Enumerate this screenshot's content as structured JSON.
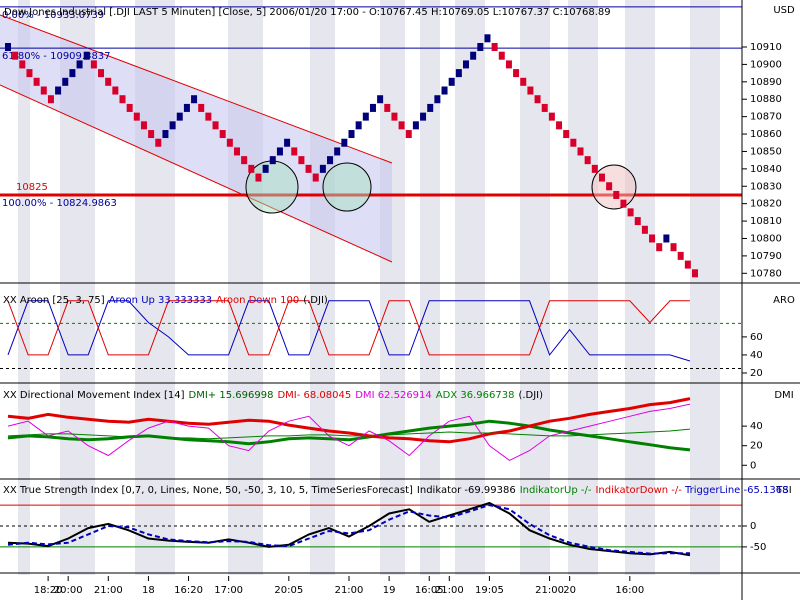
{
  "chart_data": [
    {
      "type": "renko",
      "axis_label": "USD",
      "title": "Dow Jones Industrial [.DJI LAST 5 Minuten] [Close, 5] 2006/01/20 17:00 - O:10767.45 H:10769.05 L:10767.37 C:10768.89",
      "values": [
        10910,
        10905,
        10900,
        10895,
        10890,
        10885,
        10880,
        10885,
        10890,
        10895,
        10900,
        10905,
        10900,
        10895,
        10890,
        10885,
        10880,
        10875,
        10870,
        10865,
        10860,
        10855,
        10860,
        10865,
        10870,
        10875,
        10880,
        10875,
        10870,
        10865,
        10860,
        10855,
        10850,
        10845,
        10840,
        10835,
        10840,
        10845,
        10850,
        10855,
        10850,
        10845,
        10840,
        10835,
        10840,
        10845,
        10850,
        10855,
        10860,
        10865,
        10870,
        10875,
        10880,
        10875,
        10870,
        10865,
        10860,
        10865,
        10870,
        10875,
        10880,
        10885,
        10890,
        10895,
        10900,
        10905,
        10910,
        10915,
        10910,
        10905,
        10900,
        10895,
        10890,
        10885,
        10880,
        10875,
        10870,
        10865,
        10860,
        10855,
        10850,
        10845,
        10840,
        10835,
        10830,
        10825,
        10820,
        10815,
        10810,
        10805,
        10800,
        10795,
        10800,
        10795,
        10790,
        10785,
        10780
      ],
      "up_color": "#00007a",
      "down_color": "#d8002a",
      "ylim": [
        10775,
        10937
      ],
      "yticks": [
        10780,
        10790,
        10800,
        10810,
        10820,
        10830,
        10840,
        10850,
        10860,
        10870,
        10880,
        10890,
        10900,
        10910
      ],
      "levels": [
        {
          "value": 10933.0739,
          "label": "0.00% - 10933.0739",
          "color": "#0000a0",
          "width": 1
        },
        {
          "value": 10909.3837,
          "label": "61.80% - 10909.3837",
          "color": "#0000a0",
          "width": 1
        },
        {
          "value": 10825,
          "label": "10825",
          "color": "#e00000",
          "width": 3
        },
        {
          "value": 10824.9863,
          "label": "100.00% - 10824.9863",
          "color": "#0000a0",
          "width": 0
        }
      ]
    },
    {
      "type": "line",
      "axis_label": "ARO",
      "title_parts": [
        {
          "text": "XX Aroon [25, 3, 75]",
          "color": "#000000"
        },
        {
          "text": "Aroon Up 33.333333",
          "color": "#0000c0"
        },
        {
          "text": "Aroon Down 100",
          "color": "#e00000"
        },
        {
          "text": "(.DJI)",
          "color": "#000000"
        }
      ],
      "series": [
        {
          "color": "#0000c0",
          "width": 1,
          "values": [
            40,
            100,
            100,
            40,
            40,
            100,
            100,
            76,
            60,
            40,
            40,
            40,
            100,
            100,
            40,
            40,
            100,
            100,
            100,
            40,
            40,
            100,
            100,
            100,
            100,
            100,
            100,
            40,
            68,
            40,
            40,
            40,
            40,
            40,
            33.333333
          ]
        },
        {
          "color": "#e00000",
          "width": 1,
          "values": [
            100,
            40,
            40,
            100,
            100,
            40,
            40,
            40,
            100,
            100,
            100,
            100,
            40,
            40,
            100,
            100,
            40,
            40,
            40,
            100,
            100,
            40,
            40,
            40,
            40,
            40,
            40,
            100,
            100,
            100,
            100,
            100,
            76,
            100,
            100
          ]
        }
      ],
      "levels": [
        {
          "value": 75,
          "color": "#008000",
          "dash": true
        },
        {
          "value": 25,
          "color": "#000000",
          "dash": true
        }
      ],
      "ylim": [
        10,
        112
      ],
      "yticks": [
        20,
        40,
        60
      ]
    },
    {
      "type": "line",
      "axis_label": "DMI",
      "title_parts": [
        {
          "text": "XX Directional Movement Index [14]",
          "color": "#000000"
        },
        {
          "text": "DMI+ 15.696998",
          "color": "#006000"
        },
        {
          "text": "DMI- 68.08045",
          "color": "#e00000"
        },
        {
          "text": "DMI 62.526914",
          "color": "#e000e0"
        },
        {
          "text": "ADX 36.966738",
          "color": "#008000"
        },
        {
          "text": "(.DJI)",
          "color": "#000000"
        }
      ],
      "series": [
        {
          "color": "#008000",
          "width": 3,
          "values": [
            28,
            30,
            29,
            27,
            26,
            27,
            29,
            30,
            28,
            26,
            25,
            24,
            22,
            24,
            27,
            28,
            27,
            26,
            29,
            32,
            35,
            38,
            40,
            42,
            45,
            43,
            40,
            36,
            33,
            30,
            27,
            24,
            21,
            18,
            15.696998
          ]
        },
        {
          "color": "#e00000",
          "width": 3,
          "values": [
            50,
            48,
            52,
            49,
            47,
            45,
            44,
            47,
            45,
            43,
            42,
            44,
            46,
            45,
            41,
            38,
            35,
            33,
            30,
            28,
            27,
            25,
            24,
            27,
            32,
            35,
            40,
            45,
            48,
            52,
            55,
            58,
            62,
            64,
            68.08045
          ]
        },
        {
          "color": "#e000e0",
          "width": 1,
          "values": [
            40,
            45,
            30,
            35,
            20,
            10,
            25,
            38,
            45,
            40,
            38,
            20,
            15,
            35,
            45,
            50,
            30,
            20,
            35,
            25,
            10,
            30,
            45,
            50,
            20,
            5,
            15,
            30,
            35,
            40,
            45,
            50,
            55,
            58,
            62.526914
          ]
        },
        {
          "color": "#008000",
          "width": 1,
          "values": [
            30,
            31,
            32,
            32,
            31,
            30,
            29,
            29,
            28,
            28,
            27,
            28,
            29,
            30,
            30,
            31,
            31,
            30,
            30,
            31,
            32,
            33,
            34,
            33,
            33,
            32,
            31,
            30,
            30,
            31,
            32,
            33,
            34,
            35,
            36.966738
          ]
        }
      ],
      "ylim": [
        -13,
        82
      ],
      "yticks": [
        0,
        20,
        40
      ]
    },
    {
      "type": "line",
      "axis_label": "TSI",
      "title_parts": [
        {
          "text": "XX True Strength Index [0,7, 0, Lines, None, 50, -50, 3, 10, 5, TimeSeriesForecast]",
          "color": "#000000"
        },
        {
          "text": "Indikator -69.99386",
          "color": "#000000"
        },
        {
          "text": "IndikatorUp -/-",
          "color": "#008000"
        },
        {
          "text": "IndikatorDown -/-",
          "color": "#e00000"
        },
        {
          "text": "TriggerLine -65.1368",
          "color": "#0000c0"
        }
      ],
      "series": [
        {
          "color": "#000000",
          "width": 2,
          "values": [
            -40,
            -42,
            -48,
            -30,
            -5,
            5,
            -10,
            -30,
            -35,
            -38,
            -40,
            -32,
            -40,
            -50,
            -45,
            -20,
            -5,
            -25,
            0,
            30,
            40,
            10,
            25,
            40,
            55,
            30,
            -10,
            -30,
            -45,
            -55,
            -60,
            -65,
            -68,
            -62,
            -69.99386
          ]
        },
        {
          "color": "#0000c0",
          "width": 2,
          "dash": true,
          "values": [
            -45,
            -40,
            -44,
            -40,
            -20,
            0,
            -3,
            -20,
            -32,
            -36,
            -39,
            -36,
            -38,
            -46,
            -48,
            -30,
            -12,
            -18,
            -10,
            15,
            35,
            25,
            20,
            35,
            50,
            40,
            5,
            -22,
            -40,
            -50,
            -58,
            -62,
            -66,
            -65,
            -65.1368
          ]
        }
      ],
      "levels": [
        {
          "value": 50,
          "color": "#e00000",
          "dash": false
        },
        {
          "value": 0,
          "color": "#000000",
          "dash": true
        },
        {
          "value": -50,
          "color": "#008000",
          "dash": false
        }
      ],
      "ylim": [
        -110,
        110
      ],
      "yticks": [
        -50,
        0
      ],
      "categories": [
        null,
        null,
        "18:20",
        "20:00",
        null,
        "21:00",
        null,
        "18",
        null,
        "16:20",
        null,
        "17:00",
        null,
        null,
        "20:05",
        null,
        null,
        "21:00",
        null,
        "19",
        null,
        "16:05",
        "21:00",
        null,
        "19:05",
        null,
        null,
        "21:00",
        "20",
        null,
        null,
        "16:00",
        null,
        null,
        null
      ]
    }
  ]
}
